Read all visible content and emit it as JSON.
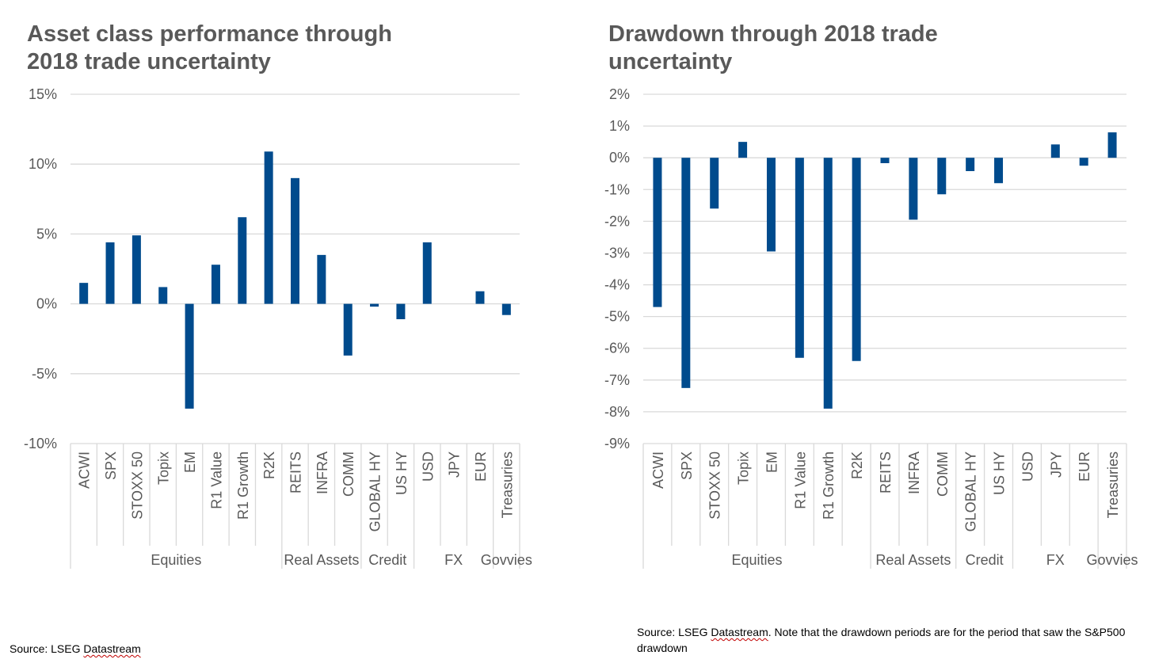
{
  "chart_data": [
    {
      "type": "bar",
      "title_lines": [
        "Asset class performance through",
        "2018 trade uncertainty"
      ],
      "categories": [
        "ACWI",
        "SPX",
        "STOXX 50",
        "Topix",
        "EM",
        "R1 Value",
        "R1 Growth",
        "R2K",
        "REITS",
        "INFRA",
        "COMM",
        "GLOBAL HY",
        "US HY",
        "USD",
        "JPY",
        "EUR",
        "Treasuries"
      ],
      "values": [
        1.5,
        4.4,
        4.9,
        1.2,
        -7.5,
        2.8,
        6.2,
        10.9,
        9.0,
        3.5,
        -3.7,
        -0.2,
        -1.1,
        4.4,
        0.0,
        0.9,
        -0.8
      ],
      "groups": [
        {
          "label": "Equities",
          "count": 8
        },
        {
          "label": "Real Assets",
          "count": 3
        },
        {
          "label": "Credit",
          "count": 2
        },
        {
          "label": "FX",
          "count": 3
        },
        {
          "label": "Govvies",
          "count": 1
        }
      ],
      "y_ticks": [
        15,
        10,
        5,
        0,
        -5,
        -10
      ],
      "y_tick_labels": [
        "15%",
        "10%",
        "5%",
        "0%",
        "-5%",
        "-10%"
      ],
      "ylim": [
        -10,
        15
      ],
      "bar_color": "#004B8D",
      "grid": true
    },
    {
      "type": "bar",
      "title_lines": [
        "Drawdown through 2018 trade",
        "uncertainty"
      ],
      "categories": [
        "ACWI",
        "SPX",
        "STOXX 50",
        "Topix",
        "EM",
        "R1 Value",
        "R1 Growth",
        "R2K",
        "REITS",
        "INFRA",
        "COMM",
        "GLOBAL HY",
        "US HY",
        "USD",
        "JPY",
        "EUR",
        "Treasuries"
      ],
      "values": [
        -4.7,
        -7.25,
        -1.6,
        0.5,
        -2.95,
        -6.3,
        -7.9,
        -6.4,
        -0.17,
        -1.95,
        -1.15,
        -0.42,
        -0.8,
        0.0,
        0.42,
        -0.25,
        0.8
      ],
      "groups": [
        {
          "label": "Equities",
          "count": 8
        },
        {
          "label": "Real Assets",
          "count": 3
        },
        {
          "label": "Credit",
          "count": 2
        },
        {
          "label": "FX",
          "count": 3
        },
        {
          "label": "Govvies",
          "count": 1
        }
      ],
      "y_ticks": [
        2,
        1,
        0,
        -1,
        -2,
        -3,
        -4,
        -5,
        -6,
        -7,
        -8,
        -9
      ],
      "y_tick_labels": [
        "2%",
        "1%",
        "0%",
        "-1%",
        "-2%",
        "-3%",
        "-4%",
        "-5%",
        "-6%",
        "-7%",
        "-8%",
        "-9%"
      ],
      "ylim": [
        -9,
        2
      ],
      "bar_color": "#004B8D",
      "grid": true
    }
  ],
  "sources": {
    "left": {
      "prefix": "Source: LSEG ",
      "brand": "Datastream",
      "suffix": ""
    },
    "right": {
      "prefix": "Source: LSEG ",
      "brand": "Datastream",
      "suffix": ". Note that the drawdown periods are for the period that saw the S&P500 drawdown"
    }
  },
  "colors": {
    "text": "#595959",
    "grid": "#D9D9D9",
    "bar": "#004B8D"
  }
}
